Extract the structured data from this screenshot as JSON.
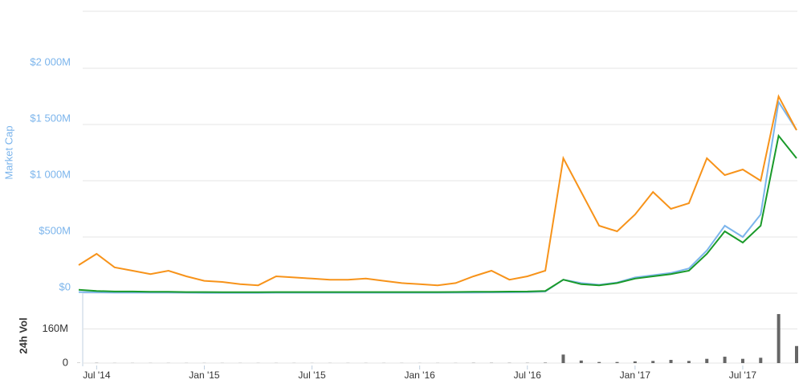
{
  "chart_data": [
    {
      "type": "line",
      "y_label": "Market Cap",
      "x": [
        "2014-06",
        "2014-07",
        "2014-08",
        "2014-09",
        "2014-10",
        "2014-11",
        "2014-12",
        "2015-01",
        "2015-02",
        "2015-03",
        "2015-04",
        "2015-05",
        "2015-06",
        "2015-07",
        "2015-08",
        "2015-09",
        "2015-10",
        "2015-11",
        "2015-12",
        "2016-01",
        "2016-02",
        "2016-03",
        "2016-04",
        "2016-05",
        "2016-06",
        "2016-07",
        "2016-08",
        "2016-09",
        "2016-10",
        "2016-11",
        "2016-12",
        "2017-01",
        "2017-02",
        "2017-03",
        "2017-04",
        "2017-05",
        "2017-06",
        "2017-07",
        "2017-08",
        "2017-09",
        "2017-10"
      ],
      "xlim": [
        "2014-06",
        "2017-10"
      ],
      "xticks": [
        {
          "value": "2014-07",
          "label": "Jul '14"
        },
        {
          "value": "2015-01",
          "label": "Jan '15"
        },
        {
          "value": "2015-07",
          "label": "Jul '15"
        },
        {
          "value": "2016-01",
          "label": "Jan '16"
        },
        {
          "value": "2016-07",
          "label": "Jul '16"
        },
        {
          "value": "2017-01",
          "label": "Jan '17"
        },
        {
          "value": "2017-07",
          "label": "Jul '17"
        }
      ],
      "ylim": [
        0,
        2500000000
      ],
      "yticks": [
        {
          "value": 0,
          "label": "$0"
        },
        {
          "value": 500000000,
          "label": "$500M"
        },
        {
          "value": 1000000000,
          "label": "$1 000M"
        },
        {
          "value": 1500000000,
          "label": "$1 500M"
        },
        {
          "value": 2000000000,
          "label": "$2 000M"
        }
      ],
      "grid": true,
      "series": [
        {
          "color": "#7cb5ec",
          "values": [
            10000000,
            8000000,
            6000000,
            5000000,
            5000000,
            5000000,
            4000000,
            3000000,
            3000000,
            3000000,
            3000000,
            4000000,
            4000000,
            4000000,
            4000000,
            4000000,
            4000000,
            4000000,
            4000000,
            4000000,
            4000000,
            5000000,
            6000000,
            7000000,
            8000000,
            10000000,
            15000000,
            120000000,
            90000000,
            75000000,
            95000000,
            140000000,
            160000000,
            180000000,
            220000000,
            380000000,
            600000000,
            500000000,
            700000000,
            1700000000,
            1450000000
          ]
        },
        {
          "color": "#f7931a",
          "values": [
            250000000,
            350000000,
            230000000,
            200000000,
            170000000,
            200000000,
            150000000,
            110000000,
            100000000,
            80000000,
            70000000,
            150000000,
            140000000,
            130000000,
            120000000,
            120000000,
            130000000,
            110000000,
            90000000,
            80000000,
            70000000,
            90000000,
            150000000,
            200000000,
            120000000,
            150000000,
            200000000,
            1200000000,
            900000000,
            600000000,
            550000000,
            700000000,
            900000000,
            750000000,
            800000000,
            1200000000,
            1050000000,
            1100000000,
            1000000000,
            1750000000,
            1450000000
          ]
        },
        {
          "color": "#1a9a2a",
          "values": [
            30000000,
            20000000,
            15000000,
            15000000,
            12000000,
            12000000,
            10000000,
            10000000,
            9000000,
            9000000,
            9000000,
            10000000,
            10000000,
            10000000,
            10000000,
            10000000,
            10000000,
            10000000,
            10000000,
            10000000,
            10000000,
            11000000,
            12000000,
            13000000,
            14000000,
            15000000,
            20000000,
            120000000,
            80000000,
            70000000,
            90000000,
            130000000,
            150000000,
            170000000,
            200000000,
            350000000,
            550000000,
            450000000,
            600000000,
            1400000000,
            1200000000
          ]
        }
      ]
    },
    {
      "type": "bar",
      "y_label": "24h Vol",
      "x": [
        "2014-06",
        "2014-07",
        "2014-08",
        "2014-09",
        "2014-10",
        "2014-11",
        "2014-12",
        "2015-01",
        "2015-02",
        "2015-03",
        "2015-04",
        "2015-05",
        "2015-06",
        "2015-07",
        "2015-08",
        "2015-09",
        "2015-10",
        "2015-11",
        "2015-12",
        "2016-01",
        "2016-02",
        "2016-03",
        "2016-04",
        "2016-05",
        "2016-06",
        "2016-07",
        "2016-08",
        "2016-09",
        "2016-10",
        "2016-11",
        "2016-12",
        "2017-01",
        "2017-02",
        "2017-03",
        "2017-04",
        "2017-05",
        "2017-06",
        "2017-07",
        "2017-08",
        "2017-09",
        "2017-10"
      ],
      "xlim": [
        "2014-06",
        "2017-10"
      ],
      "ylim": [
        0,
        260000000
      ],
      "yticks": [
        0,
        {
          "value": 160000000,
          "label": "160M"
        }
      ],
      "color": "#666666",
      "values": [
        1000000,
        1000000,
        500000,
        500000,
        500000,
        500000,
        500000,
        500000,
        500000,
        500000,
        500000,
        500000,
        500000,
        500000,
        500000,
        500000,
        500000,
        500000,
        500000,
        500000,
        500000,
        500000,
        1000000,
        1000000,
        1000000,
        1000000,
        2000000,
        40000000,
        12000000,
        5000000,
        5000000,
        8000000,
        10000000,
        15000000,
        10000000,
        20000000,
        30000000,
        20000000,
        25000000,
        230000000,
        80000000
      ]
    }
  ]
}
